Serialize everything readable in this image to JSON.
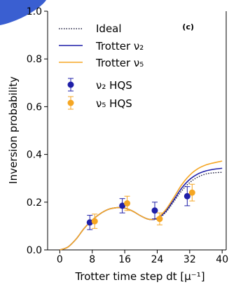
{
  "chart_data": {
    "type": "line",
    "panel_label": "(c)",
    "xlabel": "Trotter time step dt [μ⁻¹]",
    "ylabel": "Inversion probability",
    "xlim": [
      -3,
      41
    ],
    "ylim": [
      0.0,
      1.0
    ],
    "x_ticks": [
      0,
      8,
      16,
      24,
      32,
      40
    ],
    "x_tick_labels": [
      "0",
      "8",
      "16",
      "24",
      "32",
      "40"
    ],
    "y_ticks": [
      0.0,
      0.2,
      0.4,
      0.6,
      0.8,
      1.0
    ],
    "y_tick_labels": [
      "0.0",
      "0.2",
      "0.4",
      "0.6",
      "0.8",
      "1.0"
    ],
    "grid": false,
    "legend_position": "top-left",
    "colors": {
      "ideal": "#1a1a3a",
      "nu2": "#1f1fa8",
      "nu5": "#f5a623",
      "axis": "#000000"
    },
    "series": [
      {
        "name": "Ideal",
        "kind": "line",
        "style": "dotted",
        "color": "#1a1a3a",
        "x": [
          0,
          2,
          4,
          6,
          8,
          10,
          12,
          14,
          16,
          18,
          20,
          22,
          24,
          26,
          28,
          30,
          32,
          34,
          36,
          38,
          40
        ],
        "y": [
          0.0,
          0.012,
          0.045,
          0.09,
          0.125,
          0.152,
          0.17,
          0.177,
          0.175,
          0.162,
          0.142,
          0.128,
          0.13,
          0.155,
          0.2,
          0.247,
          0.282,
          0.305,
          0.318,
          0.323,
          0.325
        ]
      },
      {
        "name": "Trotter ν₂",
        "kind": "line",
        "style": "solid",
        "color": "#1f1fa8",
        "x": [
          0,
          2,
          4,
          6,
          8,
          10,
          12,
          14,
          16,
          18,
          20,
          22,
          24,
          26,
          28,
          30,
          32,
          34,
          36,
          38,
          40
        ],
        "y": [
          0.0,
          0.012,
          0.045,
          0.09,
          0.125,
          0.152,
          0.17,
          0.177,
          0.175,
          0.162,
          0.142,
          0.128,
          0.132,
          0.16,
          0.207,
          0.258,
          0.295,
          0.318,
          0.331,
          0.338,
          0.342
        ]
      },
      {
        "name": "Trotter ν₅",
        "kind": "line",
        "style": "solid",
        "color": "#f5a623",
        "x": [
          0,
          2,
          4,
          6,
          8,
          10,
          12,
          14,
          16,
          18,
          20,
          22,
          24,
          26,
          28,
          30,
          32,
          34,
          36,
          38,
          40
        ],
        "y": [
          0.0,
          0.012,
          0.045,
          0.09,
          0.125,
          0.152,
          0.17,
          0.177,
          0.175,
          0.162,
          0.142,
          0.128,
          0.134,
          0.166,
          0.217,
          0.272,
          0.313,
          0.34,
          0.356,
          0.365,
          0.372
        ]
      },
      {
        "name": "ν₂ HQS",
        "kind": "errorbar",
        "color": "#1f1fa8",
        "x": [
          8,
          16,
          24,
          32
        ],
        "y": [
          0.115,
          0.185,
          0.165,
          0.225
        ],
        "yerr": [
          0.03,
          0.03,
          0.035,
          0.04
        ]
      },
      {
        "name": "ν₅ HQS",
        "kind": "errorbar",
        "color": "#f5a623",
        "x": [
          8,
          16,
          24,
          32
        ],
        "y": [
          0.12,
          0.195,
          0.13,
          0.24
        ],
        "yerr": [
          0.03,
          0.03,
          0.025,
          0.035
        ]
      }
    ]
  }
}
